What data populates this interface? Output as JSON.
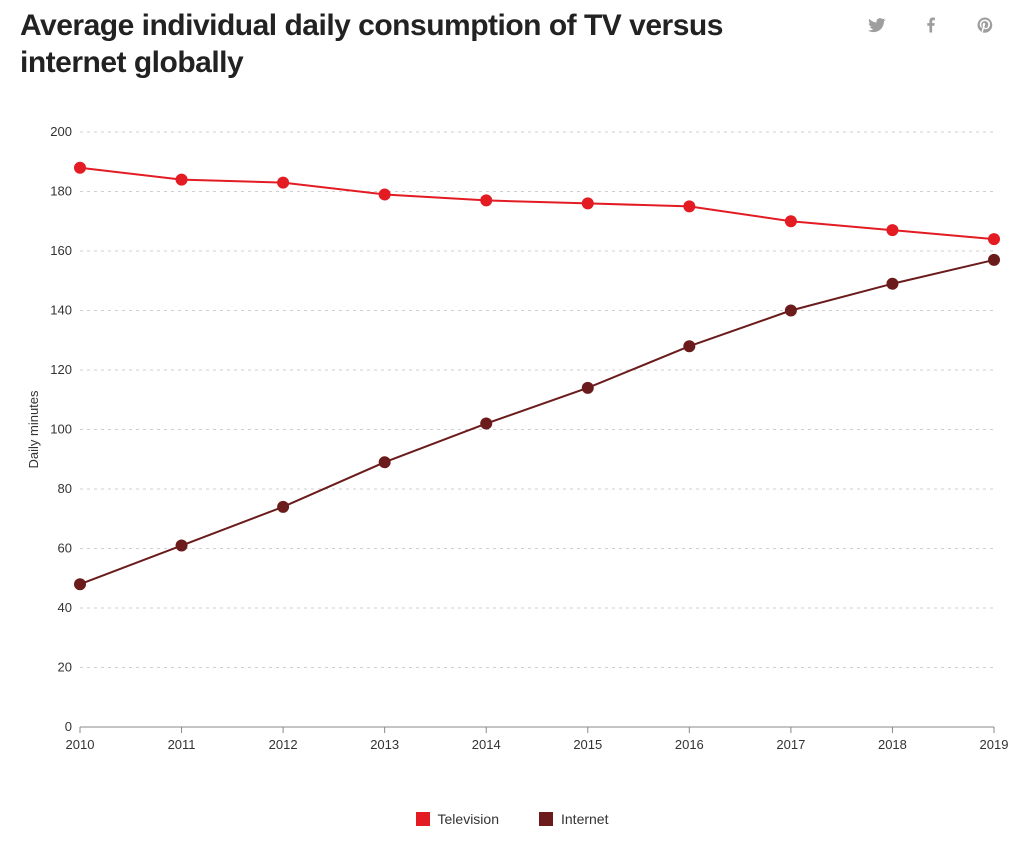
{
  "title": "Average individual daily consumption of TV versus internet globally",
  "share": {
    "twitter": "twitter-icon",
    "facebook": "facebook-icon",
    "pinterest": "pinterest-icon",
    "icon_color": "#9e9e9e"
  },
  "chart": {
    "type": "line",
    "y_axis_label": "Daily minutes",
    "x_categories": [
      "2010",
      "2011",
      "2012",
      "2013",
      "2014",
      "2015",
      "2016",
      "2017",
      "2018",
      "2019"
    ],
    "ylim": [
      0,
      200
    ],
    "ytick_step": 20,
    "yticks": [
      "0",
      "20",
      "40",
      "60",
      "80",
      "100",
      "120",
      "140",
      "160",
      "180",
      "200"
    ],
    "background_color": "#ffffff",
    "grid_color": "#cfcfcf",
    "axis_color": "#888888",
    "tick_text_color": "#333333",
    "marker_radius": 6,
    "line_width": 2,
    "label_fontsize": 13,
    "title_fontsize": 30,
    "series": [
      {
        "name": "Television",
        "color": "#e31b23",
        "values": [
          188,
          184,
          183,
          179,
          177,
          176,
          175,
          170,
          167,
          164
        ]
      },
      {
        "name": "Internet",
        "color": "#6b1b1b",
        "values": [
          48,
          61,
          74,
          89,
          102,
          114,
          128,
          140,
          149,
          157
        ]
      }
    ]
  },
  "legend": {
    "items": [
      {
        "label": "Television",
        "color": "#e31b23"
      },
      {
        "label": "Internet",
        "color": "#6b1b1b"
      }
    ]
  }
}
